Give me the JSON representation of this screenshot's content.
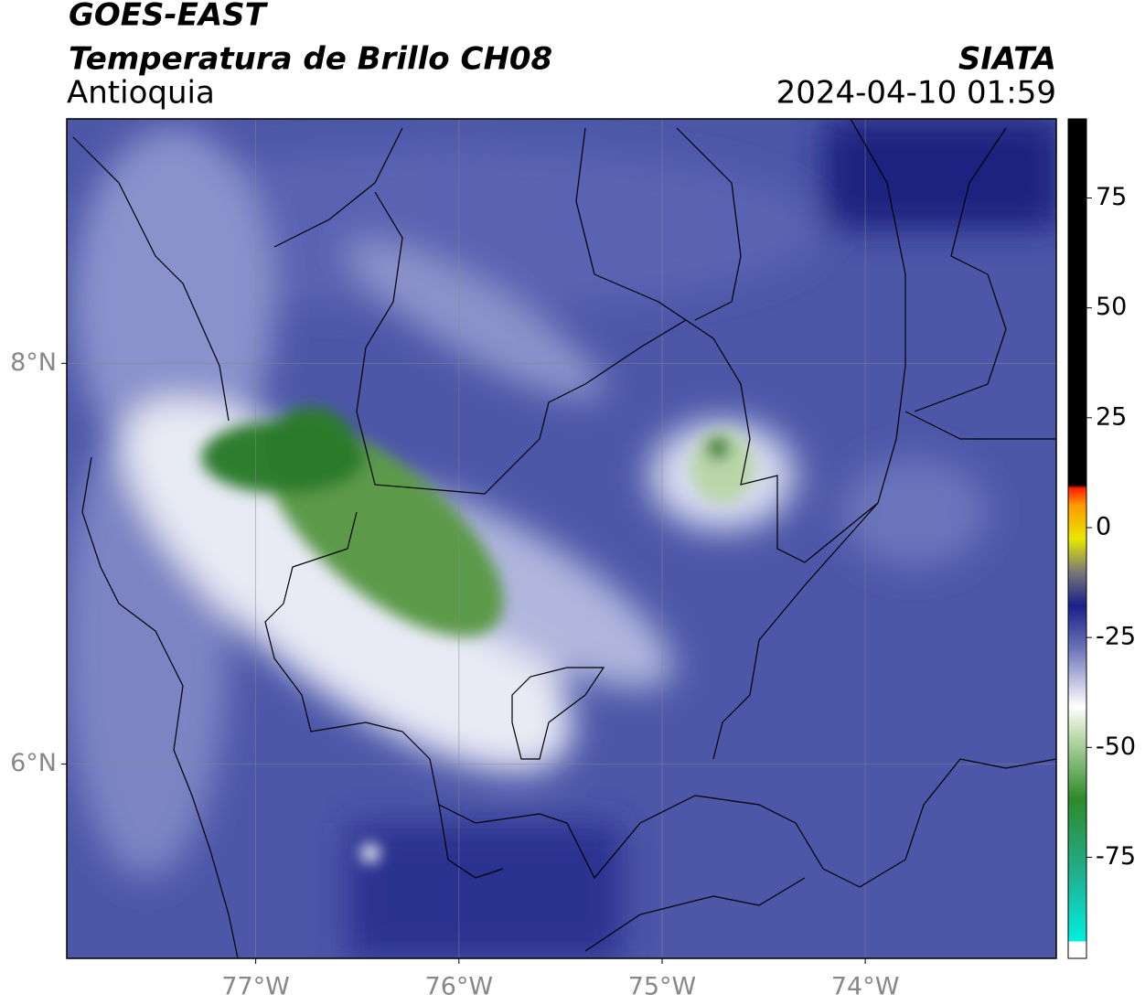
{
  "header": {
    "title": "GOES-EAST",
    "subtitle": "Temperatura de Brillo CH08",
    "region": "Antioquia",
    "source": "SIATA",
    "datetime": "2024-04-10 01:59"
  },
  "map": {
    "xlim": [
      -77.93,
      -73.06
    ],
    "ylim": [
      5.03,
      9.22
    ],
    "grid": true,
    "xticks": [
      {
        "value": -77,
        "label": "77°W"
      },
      {
        "value": -76,
        "label": "76°W"
      },
      {
        "value": -75,
        "label": "75°W"
      },
      {
        "value": -74,
        "label": "74°W"
      }
    ],
    "yticks": [
      {
        "value": 8,
        "label": "8°N"
      },
      {
        "value": 6,
        "label": "6°N"
      }
    ]
  },
  "colorbar": {
    "lim": [
      -98,
      93
    ],
    "ticks": [
      75,
      50,
      25,
      0,
      -25,
      -50,
      -75
    ]
  }
}
